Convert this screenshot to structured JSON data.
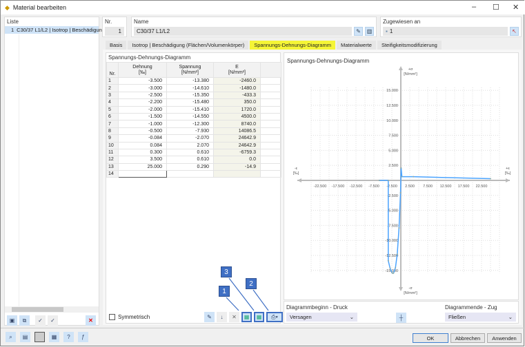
{
  "window": {
    "title": "Material bearbeiten"
  },
  "list": {
    "label": "Liste",
    "items": [
      {
        "nr": "1",
        "text": "C30/37 L1/L2 | Isotrop | Beschädigung"
      }
    ]
  },
  "nr": {
    "label": "Nr.",
    "value": "1"
  },
  "name": {
    "label": "Name",
    "value": "C30/37 L1/L2"
  },
  "assigned": {
    "label": "Zugewiesen an",
    "value": "1"
  },
  "tabs": [
    "Basis",
    "Isotrop | Beschädigung (Flächen/Volumenkörper)",
    "Spannungs-Dehnungs-Diagramm",
    "Materialwerte",
    "Steifigkeitsmodifizierung"
  ],
  "active_tab": "Spannungs-Dehnungs-Diagramm",
  "table": {
    "title": "Spannungs-Dehnungs-Diagramm",
    "headers": {
      "nr": "Nr.",
      "strain": "Dehnung",
      "strain_unit": "[‰]",
      "stress": "Spannung",
      "stress_unit": "[N/mm²]",
      "e": "E",
      "e_unit": "[N/mm²]"
    },
    "rows": [
      [
        "1",
        "-3.500",
        "-13.380",
        "-2460.0"
      ],
      [
        "2",
        "-3.000",
        "-14.610",
        "-1480.0"
      ],
      [
        "3",
        "-2.500",
        "-15.350",
        "-433.3"
      ],
      [
        "4",
        "-2.200",
        "-15.480",
        "350.0"
      ],
      [
        "5",
        "-2.000",
        "-15.410",
        "1720.0"
      ],
      [
        "6",
        "-1.500",
        "-14.550",
        "4500.0"
      ],
      [
        "7",
        "-1.000",
        "-12.300",
        "8740.0"
      ],
      [
        "8",
        "-0.500",
        "-7.930",
        "14086.5"
      ],
      [
        "9",
        "-0.084",
        "-2.070",
        "24642.9"
      ],
      [
        "10",
        "0.084",
        "2.070",
        "24642.9"
      ],
      [
        "11",
        "0.300",
        "0.610",
        "-6759.3"
      ],
      [
        "12",
        "3.500",
        "0.610",
        "0.0"
      ],
      [
        "13",
        "25.000",
        "0.290",
        "-14.9"
      ],
      [
        "14",
        "",
        "",
        ""
      ]
    ],
    "symmetric_label": "Symmetrisch",
    "symmetric_checked": false
  },
  "chart_data": {
    "type": "line",
    "title": "Spannungs-Dehnungs-Diagramm",
    "x_pos_label": "+ε",
    "x_neg_label": "-ε",
    "x_unit": "[‰]",
    "y_pos_label": "+σ",
    "y_neg_label": "-σ",
    "y_unit": "[N/mm²]",
    "x_ticks": [
      "-22.500",
      "-17.500",
      "-12.500",
      "-7.500",
      "-2.500",
      "2.500",
      "7.500",
      "12.500",
      "17.500",
      "22.500"
    ],
    "y_ticks": [
      "15.000",
      "12.500",
      "10.000",
      "7.500",
      "5.000",
      "2.500",
      "-2.500",
      "-5.000",
      "-7.500",
      "-10.000",
      "-12.500",
      "-15.000"
    ],
    "xlim": [
      -25,
      27.5
    ],
    "ylim": [
      -15.5,
      15.5
    ],
    "grid": true,
    "color": "#4aa3ff",
    "x": [
      -6,
      -3.5,
      -3.5,
      -3.0,
      -2.5,
      -2.2,
      -2.0,
      -1.5,
      -1.0,
      -0.5,
      -0.084,
      0.084,
      0.3,
      3.5,
      25.0
    ],
    "y": [
      0,
      0,
      -13.38,
      -14.61,
      -15.35,
      -15.48,
      -15.41,
      -14.55,
      -12.3,
      -7.93,
      -2.07,
      2.07,
      0.61,
      0.61,
      0.29
    ]
  },
  "diagram_start": {
    "label": "Diagrammbeginn - Druck",
    "value": "Versagen"
  },
  "diagram_end": {
    "label": "Diagrammende - Zug",
    "value": "Fließen"
  },
  "callouts": [
    "1",
    "2",
    "3"
  ],
  "buttons": {
    "ok": "OK",
    "cancel": "Abbrechen",
    "apply": "Anwenden"
  }
}
